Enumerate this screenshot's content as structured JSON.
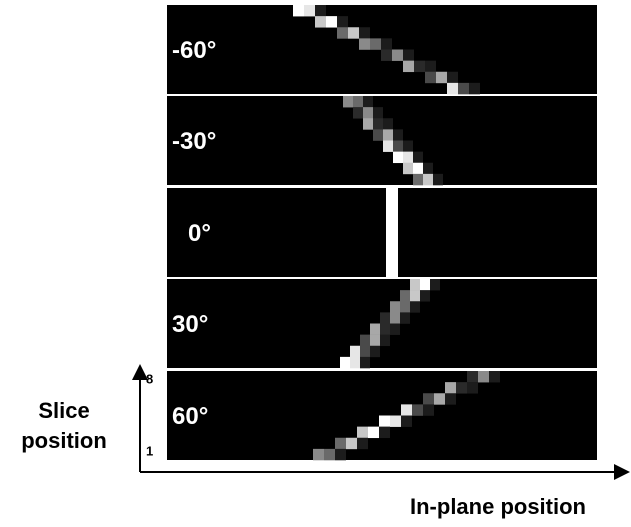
{
  "panels": [
    {
      "label": "-60°"
    },
    {
      "label": "-30°"
    },
    {
      "label": "0°"
    },
    {
      "label": "30°"
    },
    {
      "label": "60°"
    }
  ],
  "axes": {
    "y_label_line1": "Slice",
    "y_label_line2": "position",
    "y_top": "8",
    "y_bottom": "1",
    "x_label": "In-plane position"
  }
}
